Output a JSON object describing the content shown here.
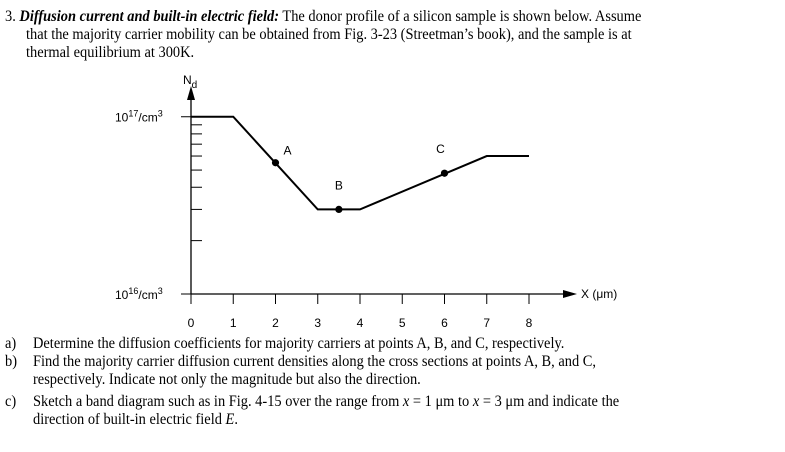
{
  "problem": {
    "number": "3.",
    "title": "Diffusion current and built-in electric field:",
    "intro_line1": "The donor profile of a silicon sample is shown below.  Assume",
    "intro_line2": "that the majority carrier mobility can be obtained from Fig. 3-23 (Streetman’s book), and the sample is at",
    "intro_line3": "thermal equilibrium at 300K."
  },
  "questions": [
    {
      "label": "a)",
      "lines": [
        "Determine the diffusion coefficients for majority carriers at points A, B, and C, respectively."
      ]
    },
    {
      "label": "b)",
      "lines": [
        "Find the majority carrier diffusion current densities along the cross sections at points A, B, and C,",
        "respectively.  Indicate not only the magnitude but also the direction."
      ]
    },
    {
      "label": "c)",
      "lines_parts": {
        "p1": "Sketch a band diagram such as in Fig. 4-15 over the range from ",
        "x1": "x",
        "p2": " = 1 μm to ",
        "x2": "x",
        "p3": " = 3 μm and indicate the",
        "p4": "direction of built-in electric field ",
        "E": "E",
        "p5": "."
      }
    }
  ],
  "chart_data": {
    "type": "line",
    "ylabel": "Nd",
    "xlabel": "X (μm)",
    "yscale": "log",
    "ylim": [
      1e+16,
      1e+17
    ],
    "ytick_labels": {
      "top": "10",
      "top_exp": "17",
      "top_unit": "/cm",
      "top_unit_exp": "3",
      "bottom": "10",
      "bottom_exp": "16",
      "bottom_unit": "/cm",
      "bottom_unit_exp": "3"
    },
    "y_minor_ticks": [
      2e+16,
      3e+16,
      4e+16,
      5e+16,
      6e+16,
      7e+16,
      8e+16,
      9e+16
    ],
    "xlim": [
      0,
      8
    ],
    "xticks": [
      "0",
      "1",
      "2",
      "3",
      "4",
      "5",
      "6",
      "7",
      "8"
    ],
    "profile": {
      "x": [
        0,
        1,
        3,
        4,
        7,
        8
      ],
      "y": [
        1e+17,
        1e+17,
        3e+16,
        3e+16,
        6e+16,
        6e+16
      ]
    },
    "points": [
      {
        "label": "A",
        "x": 2,
        "y": 5.5e+16
      },
      {
        "label": "B",
        "x": 3.5,
        "y": 3e+16
      },
      {
        "label": "C",
        "x": 6,
        "y": 4.8e+16
      }
    ]
  }
}
